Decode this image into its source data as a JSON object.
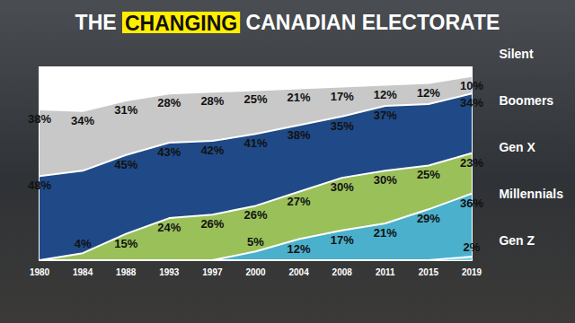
{
  "chart_data": {
    "type": "area",
    "title": "THE CHANGING CANADIAN ELECTORATE",
    "categories": [
      "1980",
      "1984",
      "1988",
      "1993",
      "1997",
      "2000",
      "2004",
      "2008",
      "2011",
      "2015",
      "2019"
    ],
    "series": [
      {
        "name": "Silent",
        "color": "#c8c8c8",
        "values": [
          38,
          34,
          31,
          28,
          28,
          25,
          21,
          17,
          12,
          12,
          10
        ],
        "value_labels": [
          "38%",
          "34%",
          "31%",
          "28%",
          "28%",
          "25%",
          "21%",
          "17%",
          "12%",
          "12%",
          "10%"
        ]
      },
      {
        "name": "Boomers",
        "color": "#1f4a87",
        "values": [
          48,
          47,
          45,
          43,
          42,
          41,
          38,
          35,
          37,
          35,
          34
        ],
        "value_labels": [
          "48%",
          null,
          "45%",
          "43%",
          "42%",
          "41%",
          "38%",
          "35%",
          "37%",
          null,
          "34%"
        ]
      },
      {
        "name": "Gen X",
        "color": "#9ac05a",
        "values": [
          0,
          4,
          15,
          24,
          26,
          26,
          27,
          30,
          30,
          25,
          23
        ],
        "value_labels": [
          null,
          "4%",
          "15%",
          "24%",
          "26%",
          "26%",
          "27%",
          "30%",
          "30%",
          "25%",
          "23%"
        ]
      },
      {
        "name": "Millennials",
        "color": "#4bb0cc",
        "values": [
          0,
          0,
          0,
          0,
          0,
          5,
          12,
          17,
          21,
          29,
          36
        ],
        "value_labels": [
          null,
          null,
          null,
          null,
          null,
          "5%",
          "12%",
          "17%",
          "21%",
          "29%",
          "36%"
        ]
      },
      {
        "name": "Gen Z",
        "color": "#7fd3e8",
        "values": [
          0,
          0,
          0,
          0,
          0,
          0,
          0,
          0,
          0,
          0,
          2
        ],
        "value_labels": [
          null,
          null,
          null,
          null,
          null,
          null,
          null,
          null,
          null,
          null,
          "2%"
        ]
      }
    ],
    "ylim": [
      0,
      110
    ],
    "yticks": [
      0,
      110
    ],
    "stacked": true,
    "data_labels": true,
    "tick_labels": "x",
    "grid": false,
    "legend": "right"
  }
}
